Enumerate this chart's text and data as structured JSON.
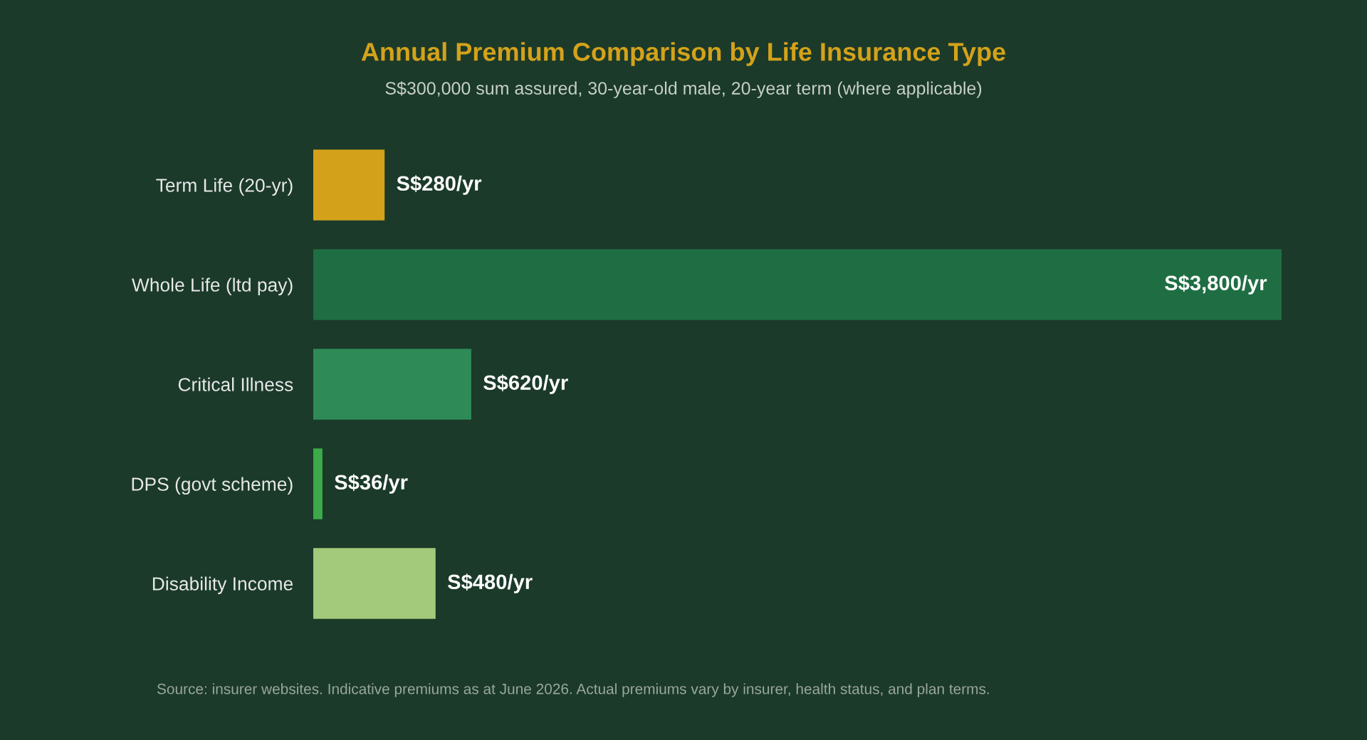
{
  "chart_data": {
    "type": "bar",
    "orientation": "horizontal",
    "title": "Annual Premium Comparison by Life Insurance Type",
    "subtitle": "S$300,000 sum assured, 30-year-old male, 20-year term (where applicable)",
    "categories": [
      "Term Life (20-yr)",
      "Whole Life (ltd pay)",
      "Critical Illness",
      "DPS (govt scheme)",
      "Disability Income"
    ],
    "values": [
      280,
      3800,
      620,
      36,
      480
    ],
    "colors": [
      "#d4a21a",
      "#1f6e43",
      "#2e8b57",
      "#3daa4a",
      "#a3c97a"
    ],
    "value_labels": [
      "S$280/yr",
      "S$3,800/yr",
      "S$620/yr",
      "S$36/yr",
      "S$480/yr"
    ],
    "annotations": [
      "Source: insurer websites. Indicative premiums as at June 2026. Actual premiums vary by insurer, health status, and plan terms."
    ],
    "grid": false,
    "legend": false
  }
}
